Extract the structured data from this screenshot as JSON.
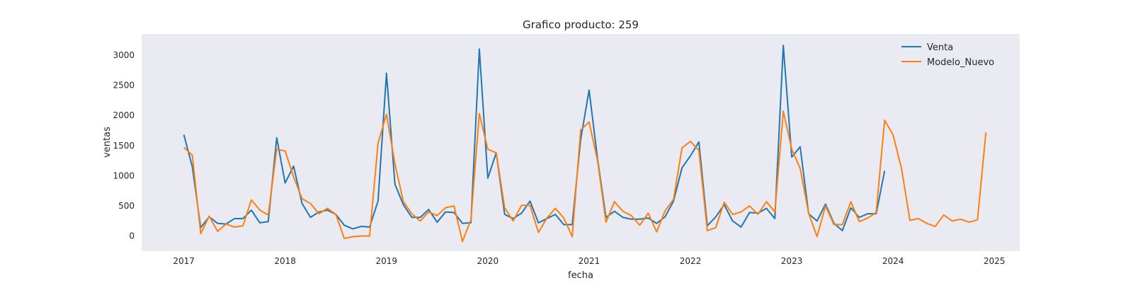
{
  "chart_data": {
    "type": "line",
    "title": "Grafico producto: 259",
    "xlabel": "fecha",
    "ylabel": "ventas",
    "xlim": [
      "2016-08-01",
      "2025-04-01"
    ],
    "ylim": [
      -250,
      3350
    ],
    "x_ticks": [
      "2017",
      "2018",
      "2019",
      "2020",
      "2021",
      "2022",
      "2023",
      "2024",
      "2025"
    ],
    "y_ticks": [
      0,
      500,
      1000,
      1500,
      2000,
      2500,
      3000
    ],
    "grid": false,
    "legend_position": "top-right",
    "background": "#eaeaf2",
    "series": [
      {
        "name": "Venta",
        "color": "#1f77b4",
        "start": "2017-01",
        "values": [
          1680,
          1150,
          140,
          320,
          210,
          200,
          290,
          290,
          430,
          220,
          240,
          1630,
          880,
          1160,
          540,
          310,
          400,
          430,
          360,
          180,
          120,
          160,
          150,
          580,
          2700,
          860,
          520,
          310,
          310,
          440,
          230,
          400,
          390,
          210,
          220,
          3100,
          960,
          1380,
          360,
          290,
          380,
          580,
          220,
          290,
          360,
          190,
          190,
          1600,
          2420,
          1280,
          310,
          410,
          310,
          280,
          280,
          300,
          210,
          320,
          580,
          1130,
          1330,
          1560,
          170,
          320,
          520,
          250,
          150,
          390,
          380,
          460,
          290,
          3160,
          1310,
          1480,
          370,
          250,
          530,
          210,
          90,
          470,
          310,
          370,
          370,
          1080
        ]
      },
      {
        "name": "Modelo_Nuevo",
        "color": "#ff7f0e",
        "start": "2017-01",
        "values": [
          1470,
          1340,
          40,
          330,
          80,
          200,
          150,
          170,
          600,
          430,
          350,
          1440,
          1410,
          980,
          620,
          540,
          370,
          460,
          360,
          -40,
          -10,
          0,
          0,
          1540,
          2020,
          1200,
          570,
          370,
          250,
          400,
          340,
          470,
          500,
          -90,
          270,
          2030,
          1440,
          1380,
          470,
          250,
          510,
          510,
          60,
          300,
          460,
          300,
          -10,
          1760,
          1890,
          1250,
          230,
          570,
          410,
          340,
          180,
          380,
          70,
          420,
          610,
          1460,
          1570,
          1420,
          90,
          140,
          560,
          360,
          400,
          500,
          360,
          570,
          400,
          2070,
          1440,
          1120,
          380,
          -10,
          500,
          190,
          190,
          570,
          240,
          300,
          390,
          1920,
          1680,
          1120,
          260,
          290,
          210,
          160,
          350,
          250,
          280,
          230,
          270,
          1720
        ]
      }
    ]
  }
}
